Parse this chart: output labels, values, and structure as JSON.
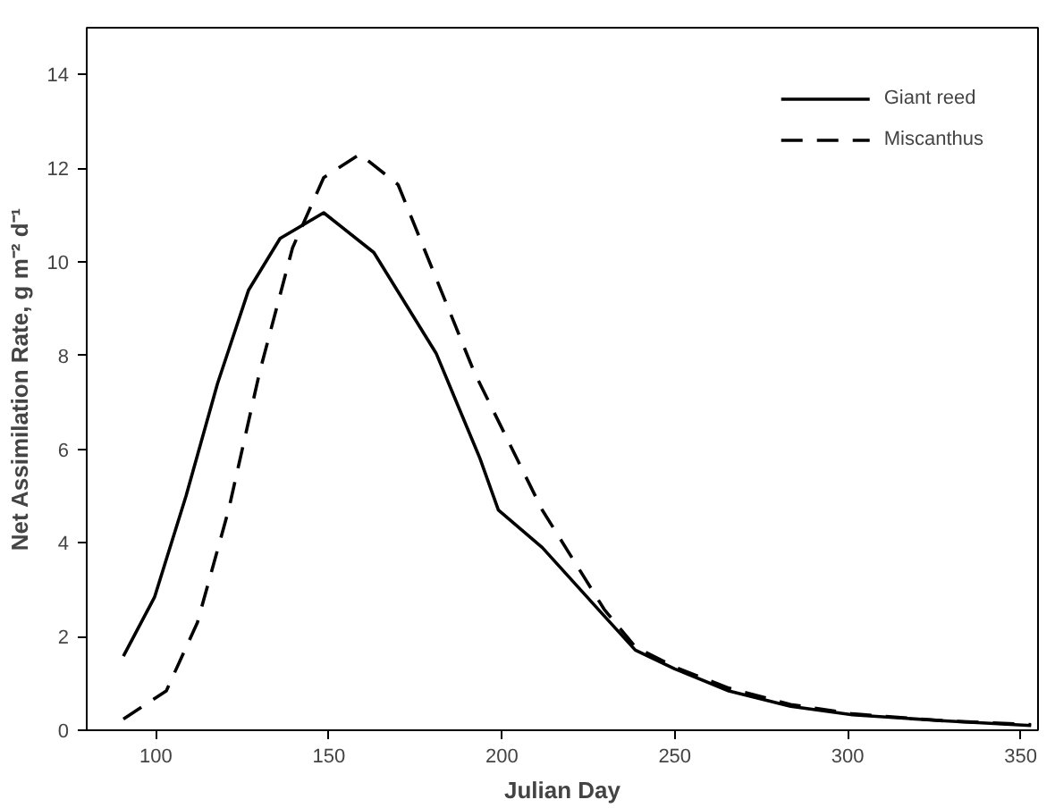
{
  "chart_data": {
    "type": "line",
    "xlabel": "Julian Day",
    "ylabel": "Net Assimilation Rate, g m⁻² d⁻¹",
    "xlim": [
      80,
      355
    ],
    "ylim": [
      0,
      15
    ],
    "xticks": [
      100,
      150,
      200,
      250,
      300,
      350
    ],
    "yticks": [
      0,
      2,
      4,
      6,
      8,
      10,
      12,
      14
    ],
    "grid": false,
    "legend": "top right",
    "marker": "none",
    "series": [
      {
        "name": "Giant reed",
        "color": "#000000",
        "line_style": "solid",
        "x": [
          90.6,
          99.6,
          108.7,
          117.8,
          126.8,
          135.9,
          148.5,
          163,
          181,
          193.7,
          199,
          211.7,
          229.6,
          238.6,
          250,
          265.6,
          283.5,
          301.4,
          328,
          353
        ],
        "values": [
          1.58,
          2.84,
          5.0,
          7.4,
          9.4,
          10.5,
          11.05,
          10.2,
          8.05,
          5.8,
          4.7,
          3.9,
          2.44,
          1.71,
          1.31,
          0.84,
          0.51,
          0.33,
          0.2,
          0.1
        ]
      },
      {
        "name": "Miscanthus",
        "color": "#000000",
        "line_style": "dashed",
        "x": [
          90.6,
          103,
          112,
          121,
          130,
          139.5,
          148.5,
          159,
          170,
          181,
          192,
          211.7,
          229.6,
          238.6,
          250,
          265.6,
          283.5,
          301.4,
          328,
          353
        ],
        "values": [
          0.24,
          0.84,
          2.3,
          4.7,
          7.65,
          10.3,
          11.8,
          12.3,
          11.65,
          9.65,
          7.65,
          4.7,
          2.58,
          1.78,
          1.35,
          0.9,
          0.55,
          0.35,
          0.2,
          0.12
        ]
      }
    ]
  }
}
